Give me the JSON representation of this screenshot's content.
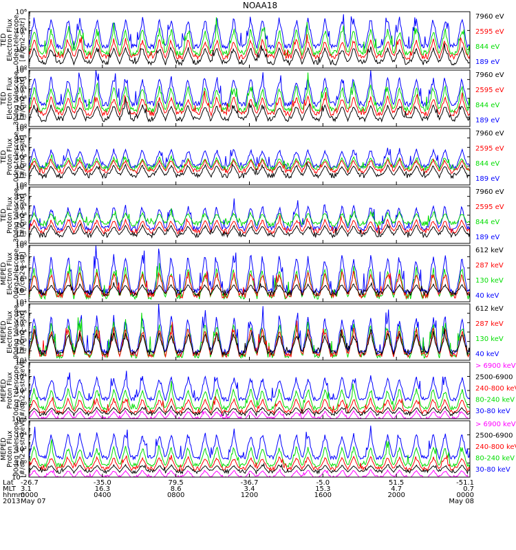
{
  "chart_data": {
    "type": "line",
    "title": "NOAA18",
    "x_axis": {
      "row_labels": [
        "Lat",
        "MLT",
        "hhmm",
        "2013"
      ],
      "ticks": [
        {
          "lat": "-26.7",
          "mlt": "3.1",
          "hhmm": "0000",
          "date": "May 07"
        },
        {
          "lat": "-35.0",
          "mlt": "16.3",
          "hhmm": "0400",
          "date": ""
        },
        {
          "lat": "79.5",
          "mlt": "8.6",
          "hhmm": "0800",
          "date": ""
        },
        {
          "lat": "-36.7",
          "mlt": "3.4",
          "hhmm": "1200",
          "date": ""
        },
        {
          "lat": "-5.0",
          "mlt": "15.3",
          "hhmm": "1600",
          "date": ""
        },
        {
          "lat": "51.5",
          "mlt": "4.7",
          "hhmm": "2000",
          "date": ""
        },
        {
          "lat": "-51.1",
          "mlt": "0.7",
          "hhmm": "0000",
          "date": "May 08"
        }
      ]
    },
    "panels": [
      {
        "ylabel": [
          "TED",
          "Electron Flux",
          "0deg telescope",
          "[#/cm2-s-str]"
        ],
        "yscale": "log",
        "ylim_exp": [
          0,
          6
        ],
        "yticks": [
          {
            "exp": 0,
            "label": "10⁰"
          },
          {
            "exp": 2,
            "label": "10²"
          },
          {
            "exp": 4,
            "label": "10⁴"
          },
          {
            "exp": 6,
            "label": "10⁶"
          }
        ],
        "series": [
          {
            "name": "7960 eV",
            "color": "#000000",
            "base": 0.6,
            "peak": 2.3
          },
          {
            "name": "2595 eV",
            "color": "#ff0000",
            "base": 1.2,
            "peak": 3.2
          },
          {
            "name": "844 eV",
            "color": "#00dd00",
            "base": 1.6,
            "peak": 4.4
          },
          {
            "name": "189 eV",
            "color": "#0000ff",
            "base": 2.3,
            "peak": 5.6
          }
        ]
      },
      {
        "ylabel": [
          "TED",
          "Electron Flux",
          "30deg telescope",
          "[#/cm2-s-str]"
        ],
        "yscale": "log",
        "ylim_exp": [
          0,
          6
        ],
        "yticks": [
          {
            "exp": 0,
            "label": "10⁰"
          },
          {
            "exp": 1,
            "label": "10¹"
          },
          {
            "exp": 2,
            "label": "10²"
          },
          {
            "exp": 3,
            "label": "10³"
          },
          {
            "exp": 4,
            "label": "10⁴"
          },
          {
            "exp": 5,
            "label": "10⁵"
          },
          {
            "exp": 6,
            "label": "10⁶"
          }
        ],
        "series": [
          {
            "name": "7960 eV",
            "color": "#000000",
            "base": 0.8,
            "peak": 2.4
          },
          {
            "name": "2595 eV",
            "color": "#ff0000",
            "base": 1.4,
            "peak": 3.3
          },
          {
            "name": "844 eV",
            "color": "#00dd00",
            "base": 1.8,
            "peak": 4.5
          },
          {
            "name": "189 eV",
            "color": "#0000ff",
            "base": 2.4,
            "peak": 5.5
          }
        ]
      },
      {
        "ylabel": [
          "TED",
          "Proton Flux",
          "0deg telescope",
          "[#/cm2-s-str]"
        ],
        "yscale": "log",
        "ylim_exp": [
          0,
          6
        ],
        "yticks": [
          {
            "exp": 0,
            "label": "10⁰"
          },
          {
            "exp": 1,
            "label": "10¹"
          },
          {
            "exp": 2,
            "label": "10²"
          },
          {
            "exp": 3,
            "label": "10³"
          },
          {
            "exp": 4,
            "label": "10⁴"
          },
          {
            "exp": 5,
            "label": "10⁵"
          },
          {
            "exp": 6,
            "label": "10⁶"
          }
        ],
        "series": [
          {
            "name": "7960 eV",
            "color": "#000000",
            "base": 1.0,
            "peak": 2.2
          },
          {
            "name": "2595 eV",
            "color": "#ff0000",
            "base": 1.5,
            "peak": 2.8
          },
          {
            "name": "844 eV",
            "color": "#00dd00",
            "base": 1.8,
            "peak": 3.0
          },
          {
            "name": "189 eV",
            "color": "#0000ff",
            "base": 2.0,
            "peak": 4.0
          }
        ]
      },
      {
        "ylabel": [
          "TED",
          "Proton Flux",
          "30deg telescope",
          "[#/cm2-s-str]"
        ],
        "yscale": "log",
        "ylim_exp": [
          0,
          6
        ],
        "yticks": [
          {
            "exp": 0,
            "label": "10⁰"
          },
          {
            "exp": 1,
            "label": "10¹"
          },
          {
            "exp": 2,
            "label": "10²"
          },
          {
            "exp": 3,
            "label": "10³"
          },
          {
            "exp": 4,
            "label": "10⁴"
          },
          {
            "exp": 5,
            "label": "10⁵"
          },
          {
            "exp": 6,
            "label": "10⁶"
          }
        ],
        "series": [
          {
            "name": "7960 eV",
            "color": "#000000",
            "base": 0.9,
            "peak": 2.0
          },
          {
            "name": "2595 eV",
            "color": "#ff0000",
            "base": 1.3,
            "peak": 2.6
          },
          {
            "name": "844 eV",
            "color": "#00dd00",
            "base": 2.1,
            "peak": 3.4
          },
          {
            "name": "189 eV",
            "color": "#0000ff",
            "base": 1.6,
            "peak": 4.2
          }
        ]
      },
      {
        "ylabel": [
          "MEPED",
          "Electron Flux",
          "0deg telescope",
          "[#/cm2-s-str]"
        ],
        "yscale": "log",
        "ylim_exp": [
          1,
          6
        ],
        "yticks": [
          {
            "exp": 1,
            "label": "10¹"
          },
          {
            "exp": 2,
            "label": "10²"
          },
          {
            "exp": 3,
            "label": "10³"
          },
          {
            "exp": 4,
            "label": "10⁴"
          },
          {
            "exp": 5,
            "label": "10⁵"
          },
          {
            "exp": 6,
            "label": "10⁶"
          }
        ],
        "series": [
          {
            "name": "612 keV",
            "color": "#000000",
            "base": 1.8,
            "peak": 2.6
          },
          {
            "name": "287 keV",
            "color": "#ff0000",
            "base": 1.6,
            "peak": 3.8
          },
          {
            "name": "130 keV",
            "color": "#00dd00",
            "base": 1.5,
            "peak": 4.2
          },
          {
            "name": "40 keV",
            "color": "#0000ff",
            "base": 1.9,
            "peak": 5.4
          }
        ]
      },
      {
        "ylabel": [
          "MEPED",
          "Electron Flux",
          "90deg telescope",
          "[#/cm2-s-str]"
        ],
        "yscale": "log",
        "ylim_exp": [
          1,
          7
        ],
        "yticks": [
          {
            "exp": 1,
            "label": "10¹"
          },
          {
            "exp": 2,
            "label": "10²"
          },
          {
            "exp": 3,
            "label": "10³"
          },
          {
            "exp": 4,
            "label": "10⁴"
          },
          {
            "exp": 5,
            "label": "10⁵"
          },
          {
            "exp": 6,
            "label": "10⁶"
          },
          {
            "exp": 7,
            "label": "10⁷"
          }
        ],
        "series": [
          {
            "name": "612 keV",
            "color": "#000000",
            "base": 1.8,
            "peak": 4.0
          },
          {
            "name": "287 keV",
            "color": "#ff0000",
            "base": 1.6,
            "peak": 4.6
          },
          {
            "name": "130 keV",
            "color": "#00dd00",
            "base": 1.5,
            "peak": 5.2
          },
          {
            "name": "40 keV",
            "color": "#0000ff",
            "base": 1.9,
            "peak": 6.0
          }
        ]
      },
      {
        "ylabel": [
          "MEPED",
          "Proton Flux",
          "0deg telescope",
          "[#/cm2-s-str-keV]"
        ],
        "yscale": "log",
        "ylim_exp": [
          -2,
          6
        ],
        "yticks": [
          {
            "exp": -2,
            "label": "10⁻²"
          },
          {
            "exp": 0,
            "label": "10⁰"
          },
          {
            "exp": 2,
            "label": "10²"
          },
          {
            "exp": 4,
            "label": "10⁴"
          },
          {
            "exp": 6,
            "label": "10⁶"
          }
        ],
        "series": [
          {
            "name": "> 6900 keV",
            "color": "#ff00ff",
            "base": -2.0,
            "peak": -0.8
          },
          {
            "name": "2500-6900",
            "color": "#000000",
            "base": -1.3,
            "peak": -0.3
          },
          {
            "name": "240-800 keV",
            "color": "#ff0000",
            "base": -1.0,
            "peak": 1.0
          },
          {
            "name": "80-240 keV",
            "color": "#00dd00",
            "base": -0.5,
            "peak": 2.5
          },
          {
            "name": "30-80 keV",
            "color": "#0000ff",
            "base": 0.8,
            "peak": 4.2
          }
        ]
      },
      {
        "ylabel": [
          "MEPED",
          "Proton Flux",
          "90deg telescope",
          "[#/cm2-s-str-keV]"
        ],
        "yscale": "log",
        "ylim_exp": [
          -2,
          6
        ],
        "yticks": [
          {
            "exp": -2,
            "label": "10⁻²"
          },
          {
            "exp": 0,
            "label": "10⁰"
          },
          {
            "exp": 2,
            "label": "10²"
          },
          {
            "exp": 4,
            "label": "10⁴"
          },
          {
            "exp": 6,
            "label": "10⁶"
          }
        ],
        "series": [
          {
            "name": "> 6900 keV",
            "color": "#ff00ff",
            "base": -2.0,
            "peak": -0.9
          },
          {
            "name": "2500-6900",
            "color": "#000000",
            "base": -1.2,
            "peak": -0.2
          },
          {
            "name": "240-800 keV",
            "color": "#ff0000",
            "base": -0.8,
            "peak": 1.0
          },
          {
            "name": "80-240 keV",
            "color": "#00dd00",
            "base": -0.3,
            "peak": 2.5
          },
          {
            "name": "30-80 keV",
            "color": "#0000ff",
            "base": 0.8,
            "peak": 4.5
          }
        ]
      }
    ]
  }
}
